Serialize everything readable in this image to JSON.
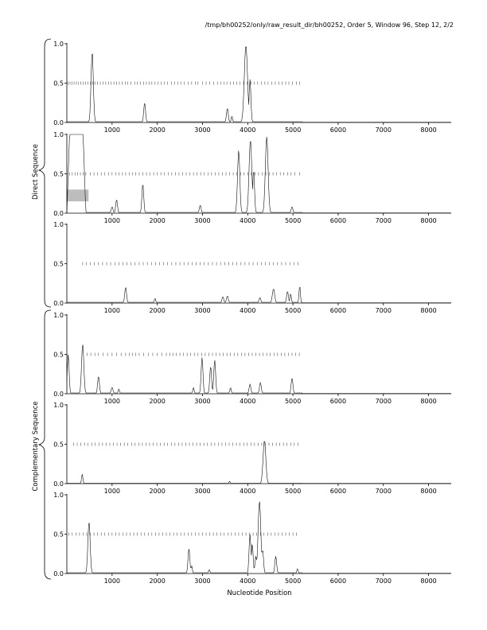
{
  "page": {
    "title": "/tmp/bh00252/only/raw_result_dir/bh00252, Order 5, Window 96, Step 12, 2/2"
  },
  "group_labels": {
    "direct": "Direct Sequence",
    "complementary": "Complementary Sequence"
  },
  "chart_data": [
    {
      "type": "line",
      "group": "direct",
      "xlabel": "",
      "ylabel": "",
      "xlim": [
        0,
        8500
      ],
      "ylim": [
        0,
        1
      ],
      "x_ticks": [
        1000,
        2000,
        3000,
        4000,
        5000,
        6000,
        7000,
        8000
      ],
      "y_ticks": [
        0.0,
        0.5,
        1.0
      ],
      "y_tick_labels": [
        "0.0",
        "0.5",
        "1.0"
      ],
      "marker_level": 0.5,
      "markers": [
        30,
        70,
        110,
        160,
        210,
        260,
        310,
        360,
        410,
        470,
        520,
        570,
        620,
        680,
        740,
        800,
        860,
        920,
        980,
        1040,
        1100,
        1160,
        1220,
        1290,
        1350,
        1420,
        1500,
        1560,
        1630,
        1700,
        1760,
        1820,
        1880,
        1950,
        2020,
        2090,
        2160,
        2230,
        2310,
        2380,
        2450,
        2520,
        2600,
        2680,
        2760,
        2840,
        2900,
        3000,
        3080,
        3160,
        3250,
        3330,
        3410,
        3480,
        3540,
        3620,
        3690,
        3760,
        3830,
        3910,
        3990,
        4070,
        4140,
        4220,
        4300,
        4380,
        4450,
        4530,
        4610,
        4690,
        4760,
        4840,
        4910,
        4990,
        5080,
        5150
      ],
      "shaded": [],
      "peaks": [
        [
          560,
          0.9,
          25
        ],
        [
          1720,
          0.25,
          20
        ],
        [
          3550,
          0.18,
          20
        ],
        [
          3650,
          0.08,
          15
        ],
        [
          3960,
          0.98,
          35
        ],
        [
          4050,
          0.55,
          20
        ]
      ],
      "baseline": 0.01
    },
    {
      "type": "line",
      "group": "direct",
      "xlabel": "",
      "ylabel": "",
      "xlim": [
        0,
        8500
      ],
      "ylim": [
        0,
        1
      ],
      "x_ticks": [
        1000,
        2000,
        3000,
        4000,
        5000,
        6000,
        7000,
        8000
      ],
      "y_ticks": [
        0.0,
        0.5,
        1.0
      ],
      "y_tick_labels": [
        "0.0",
        "0.5",
        "1.0"
      ],
      "marker_level": 0.5,
      "markers": [
        60,
        120,
        180,
        240,
        300,
        360,
        420,
        520,
        600,
        680,
        760,
        840,
        920,
        1000,
        1080,
        1150,
        1230,
        1300,
        1380,
        1450,
        1520,
        1600,
        1680,
        1760,
        1840,
        1920,
        2000,
        2080,
        2160,
        2240,
        2320,
        2400,
        2480,
        2560,
        2640,
        2720,
        2800,
        2880,
        2960,
        3040,
        3120,
        3200,
        3280,
        3360,
        3440,
        3520,
        3600,
        3680,
        3760,
        3840,
        3920,
        4000,
        4080,
        4160,
        4240,
        4320,
        4400,
        4480,
        4560,
        4640,
        4720,
        4800,
        4880,
        4960,
        5040,
        5150
      ],
      "shaded": [
        [
          0,
          480,
          0.15,
          0.3
        ]
      ],
      "plateau": [
        0,
        420,
        1.0
      ],
      "peaks": [
        [
          1000,
          0.08,
          20
        ],
        [
          1100,
          0.17,
          20
        ],
        [
          1680,
          0.37,
          20
        ],
        [
          2950,
          0.1,
          20
        ],
        [
          3800,
          0.8,
          25
        ],
        [
          4060,
          0.93,
          30
        ],
        [
          4130,
          0.55,
          20
        ],
        [
          4420,
          0.97,
          30
        ],
        [
          4980,
          0.08,
          20
        ]
      ],
      "baseline": 0.01
    },
    {
      "type": "line",
      "group": "direct",
      "xlabel": "",
      "ylabel": "",
      "xlim": [
        0,
        8500
      ],
      "ylim": [
        0,
        1
      ],
      "x_ticks": [
        1000,
        2000,
        3000,
        4000,
        5000,
        6000,
        7000,
        8000
      ],
      "y_ticks": [
        0.0,
        0.5,
        1.0
      ],
      "y_tick_labels": [
        "0.0",
        "0.5",
        "1.0"
      ],
      "marker_level": 0.5,
      "markers": [
        350,
        430,
        520,
        610,
        700,
        790,
        880,
        970,
        1060,
        1150,
        1240,
        1330,
        1420,
        1510,
        1600,
        1690,
        1780,
        1870,
        1960,
        2050,
        2140,
        2230,
        2320,
        2410,
        2500,
        2590,
        2680,
        2770,
        2860,
        2950,
        3040,
        3130,
        3220,
        3310,
        3400,
        3490,
        3580,
        3670,
        3760,
        3850,
        3940,
        4030,
        4120,
        4210,
        4300,
        4390,
        4480,
        4570,
        4660,
        4750,
        4840,
        4930,
        5020,
        5110
      ],
      "shaded": [],
      "peaks": [
        [
          1300,
          0.2,
          20
        ],
        [
          1950,
          0.06,
          15
        ],
        [
          3450,
          0.08,
          20
        ],
        [
          3550,
          0.09,
          20
        ],
        [
          4270,
          0.07,
          20
        ],
        [
          4570,
          0.18,
          25
        ],
        [
          4880,
          0.15,
          20
        ],
        [
          4950,
          0.12,
          15
        ],
        [
          5150,
          0.22,
          15
        ]
      ],
      "baseline": 0.01
    },
    {
      "type": "line",
      "group": "complementary",
      "xlabel": "",
      "ylabel": "",
      "xlim": [
        0,
        8500
      ],
      "ylim": [
        0,
        1
      ],
      "x_ticks": [
        1000,
        2000,
        3000,
        4000,
        5000,
        6000,
        7000,
        8000
      ],
      "y_ticks": [
        0.0,
        0.5,
        1.0
      ],
      "y_tick_labels": [
        "0.0",
        "0.5",
        "1.0"
      ],
      "marker_level": 0.5,
      "markers": [
        450,
        530,
        620,
        700,
        800,
        900,
        1000,
        1100,
        1200,
        1300,
        1380,
        1450,
        1520,
        1600,
        1700,
        1800,
        1900,
        2000,
        2100,
        2200,
        2280,
        2350,
        2420,
        2500,
        2580,
        2660,
        2740,
        2820,
        2900,
        2980,
        3060,
        3140,
        3220,
        3300,
        3380,
        3460,
        3540,
        3620,
        3700,
        3780,
        3860,
        3940,
        4020,
        4100,
        4180,
        4260,
        4340,
        4420,
        4500,
        4580,
        4660,
        4740,
        4820,
        4900,
        4980,
        5060,
        5140
      ],
      "shaded": [],
      "peaks": [
        [
          30,
          0.5,
          20
        ],
        [
          350,
          0.63,
          25
        ],
        [
          700,
          0.22,
          20
        ],
        [
          1000,
          0.08,
          20
        ],
        [
          1150,
          0.06,
          15
        ],
        [
          2800,
          0.08,
          15
        ],
        [
          2990,
          0.46,
          20
        ],
        [
          3180,
          0.35,
          20
        ],
        [
          3270,
          0.43,
          20
        ],
        [
          3620,
          0.08,
          15
        ],
        [
          4050,
          0.12,
          20
        ],
        [
          4280,
          0.14,
          20
        ],
        [
          4980,
          0.2,
          20
        ]
      ],
      "baseline": 0.01
    },
    {
      "type": "line",
      "group": "complementary",
      "xlabel": "",
      "ylabel": "",
      "xlim": [
        0,
        8500
      ],
      "ylim": [
        0,
        1
      ],
      "x_ticks": [
        1000,
        2000,
        3000,
        4000,
        5000,
        6000,
        7000,
        8000
      ],
      "y_ticks": [
        0.0,
        0.5,
        1.0
      ],
      "y_tick_labels": [
        "0.0",
        "0.5",
        "1.0"
      ],
      "marker_level": 0.5,
      "markers": [
        150,
        230,
        310,
        390,
        470,
        550,
        630,
        710,
        790,
        870,
        950,
        1030,
        1110,
        1190,
        1270,
        1350,
        1430,
        1510,
        1590,
        1670,
        1750,
        1830,
        1910,
        1990,
        2070,
        2150,
        2230,
        2310,
        2390,
        2470,
        2550,
        2630,
        2710,
        2790,
        2870,
        2950,
        3030,
        3110,
        3190,
        3270,
        3350,
        3430,
        3510,
        3590,
        3670,
        3750,
        3830,
        3910,
        3990,
        4070,
        4150,
        4230,
        4310,
        4390,
        4470,
        4550,
        4630,
        4710,
        4790,
        4870,
        4950,
        5030,
        5110
      ],
      "shaded": [],
      "peaks": [
        [
          340,
          0.12,
          15
        ],
        [
          4370,
          0.55,
          30
        ],
        [
          3600,
          0.03,
          15
        ]
      ],
      "baseline": 0.005
    },
    {
      "type": "line",
      "group": "complementary",
      "xlabel": "Nucleotide Position",
      "ylabel": "",
      "xlim": [
        0,
        8500
      ],
      "ylim": [
        0,
        1
      ],
      "x_ticks": [
        1000,
        2000,
        3000,
        4000,
        5000,
        6000,
        7000,
        8000
      ],
      "y_ticks": [
        0.0,
        0.5,
        1.0
      ],
      "y_tick_labels": [
        "0.0",
        "0.5",
        "1.0"
      ],
      "marker_level": 0.5,
      "markers": [
        40,
        120,
        200,
        280,
        360,
        440,
        520,
        600,
        680,
        760,
        840,
        920,
        1000,
        1080,
        1160,
        1240,
        1320,
        1400,
        1480,
        1560,
        1640,
        1720,
        1800,
        1880,
        1960,
        2040,
        2120,
        2200,
        2280,
        2360,
        2440,
        2520,
        2600,
        2680,
        2760,
        2840,
        2920,
        3000,
        3080,
        3160,
        3240,
        3320,
        3400,
        3480,
        3560,
        3640,
        3720,
        3800,
        3880,
        3960,
        4040,
        4120,
        4200,
        4280,
        4360,
        4440,
        4520,
        4600,
        4680,
        4760,
        4840,
        4920,
        5000,
        5080
      ],
      "shaded": [],
      "peaks": [
        [
          490,
          0.66,
          25
        ],
        [
          2700,
          0.32,
          20
        ],
        [
          2760,
          0.1,
          15
        ],
        [
          3150,
          0.05,
          15
        ],
        [
          4050,
          0.5,
          20
        ],
        [
          4100,
          0.38,
          20
        ],
        [
          4180,
          0.22,
          20
        ],
        [
          4260,
          0.92,
          30
        ],
        [
          4330,
          0.3,
          20
        ],
        [
          4620,
          0.22,
          20
        ],
        [
          5100,
          0.06,
          15
        ]
      ],
      "baseline": 0.01
    }
  ]
}
